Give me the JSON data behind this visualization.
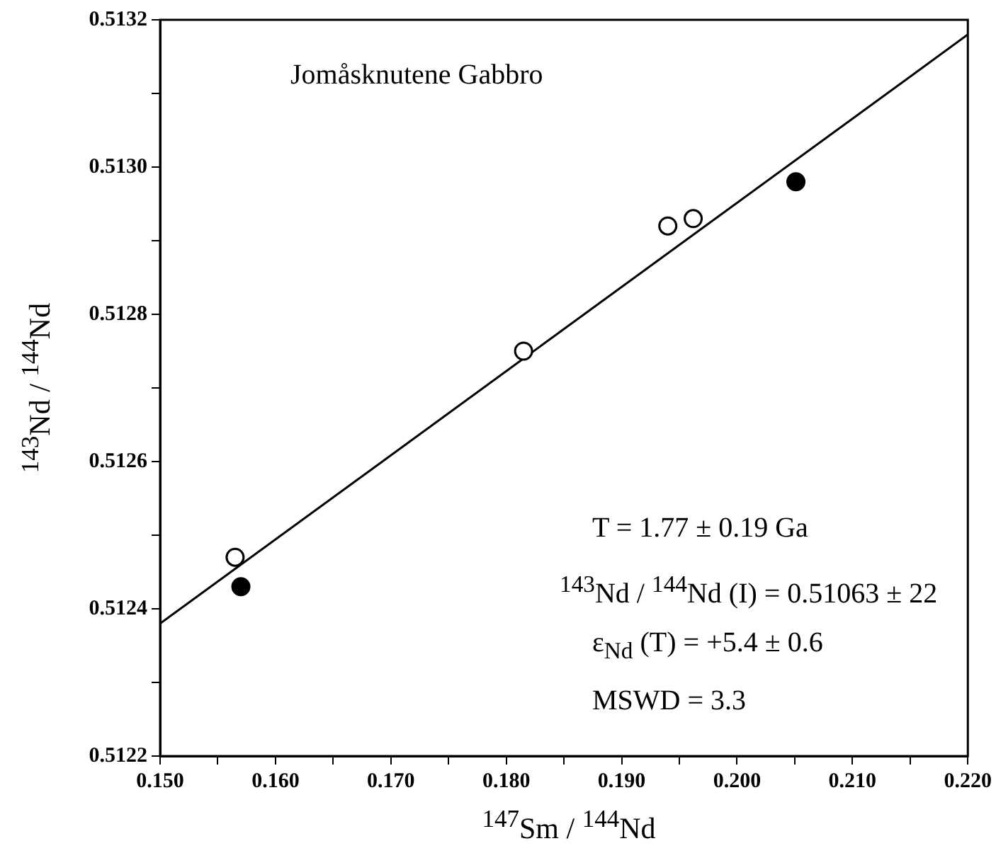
{
  "chart_data": {
    "type": "scatter",
    "xlabel": "$^{147}$Sm / $^{144}$Nd",
    "ylabel": "$^{143}$Nd / $^{144}$Nd",
    "annotations": [
      "Jomåsknutene Gabbro",
      "T = 1.77 ± 0.19 Ga",
      "$^{143}$Nd / $^{144}$Nd (I) = 0.51063 ± 22",
      "ε$_{Nd}$ (T) = +5.4 ± 0.6",
      "MSWD = 3.3"
    ],
    "series": [
      {
        "type": "scatter",
        "color": "#ffffff",
        "marker": "circle",
        "x": [
          0.1565,
          0.1815,
          0.194,
          0.1962
        ],
        "values": [
          0.51247,
          0.51275,
          0.51292,
          0.51293
        ]
      },
      {
        "type": "scatter",
        "color": "#000000",
        "marker": "circle",
        "x": [
          0.157,
          0.2051
        ],
        "values": [
          0.51243,
          0.51298
        ]
      },
      {
        "type": "line",
        "color": "#000000",
        "marker": "none",
        "x": [
          0.15,
          0.22
        ],
        "values": [
          0.51238,
          0.51318
        ]
      }
    ],
    "xlim": [
      0.15,
      0.22
    ],
    "xticks": [
      {
        "value": 0.15,
        "label": "0.150"
      },
      {
        "value": 0.155,
        "label": null
      },
      {
        "value": 0.16,
        "label": "0.160"
      },
      {
        "value": 0.165,
        "label": null
      },
      {
        "value": 0.17,
        "label": "0.170"
      },
      {
        "value": 0.175,
        "label": null
      },
      {
        "value": 0.18,
        "label": "0.180"
      },
      {
        "value": 0.185,
        "label": null
      },
      {
        "value": 0.19,
        "label": "0.190"
      },
      {
        "value": 0.195,
        "label": null
      },
      {
        "value": 0.2,
        "label": "0.200"
      },
      {
        "value": 0.205,
        "label": null
      },
      {
        "value": 0.21,
        "label": "0.210"
      },
      {
        "value": 0.215,
        "label": null
      },
      {
        "value": 0.22,
        "label": "0.220"
      }
    ],
    "ylim": [
      0.5122,
      0.5132
    ],
    "yticks": [
      0.5122,
      {
        "value": 0.5123,
        "label": null
      },
      0.5124,
      {
        "value": 0.5125,
        "label": null
      },
      0.5126,
      {
        "value": 0.5127,
        "label": null
      },
      0.5128,
      {
        "value": 0.5129,
        "label": null
      },
      {
        "value": 0.513,
        "label": "0.5130"
      },
      {
        "value": 0.5131,
        "label": null
      },
      0.5132
    ],
    "grid": false,
    "legend": false
  }
}
